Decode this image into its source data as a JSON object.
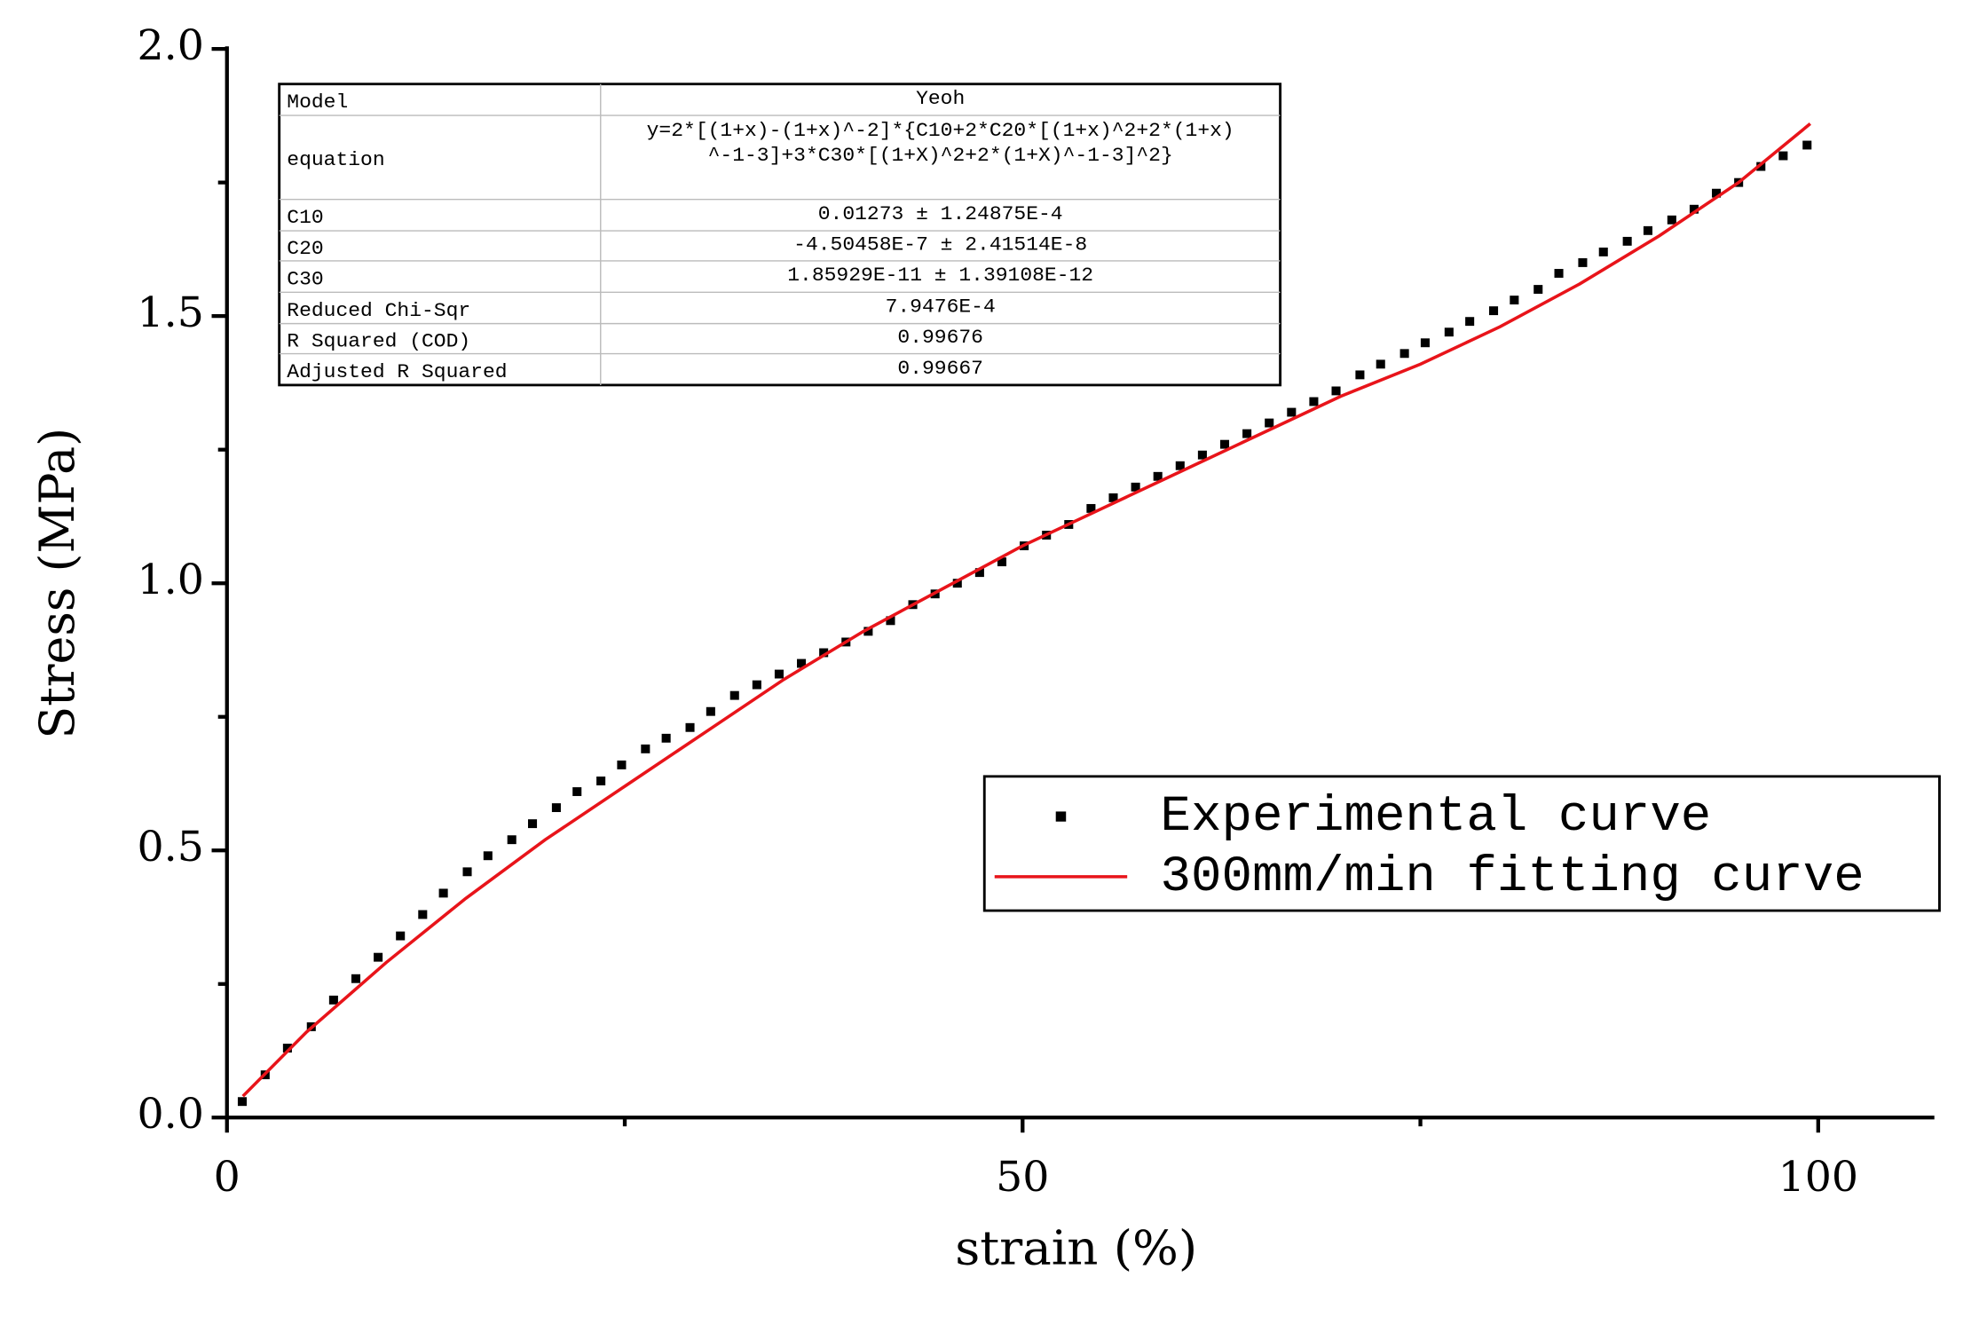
{
  "chart_data": {
    "type": "scatter",
    "x_label": "strain (%)",
    "y_label": "Stress (MPa)",
    "xlim": [
      0,
      107.3
    ],
    "ylim": [
      0,
      2.0
    ],
    "xticks": [
      0,
      50,
      100
    ],
    "yticks": [
      {
        "value": 0,
        "label": "0.0"
      },
      {
        "value": 0.5,
        "label": "0.5"
      },
      {
        "value": 1,
        "label": "1.0"
      },
      {
        "value": 1.5,
        "label": "1.5"
      },
      {
        "value": 2,
        "label": "2.0"
      }
    ],
    "xminor": [
      25,
      75
    ],
    "yminor": [
      0.25,
      0.75,
      1.25,
      1.75
    ],
    "legend": "lower right",
    "series": [
      {
        "name": "Experimental curve",
        "color": "#000000",
        "mode": "markers",
        "x": [
          0.96,
          2.4,
          3.8,
          5.3,
          6.7,
          8.1,
          9.5,
          10.9,
          12.3,
          13.6,
          15.1,
          16.4,
          17.9,
          19.2,
          20.7,
          22.0,
          23.5,
          24.8,
          26.3,
          27.6,
          29.1,
          30.4,
          31.9,
          33.3,
          34.7,
          36.1,
          37.5,
          38.9,
          40.3,
          41.7,
          43.1,
          44.5,
          45.9,
          47.3,
          48.7,
          50.1,
          51.5,
          52.9,
          54.3,
          55.7,
          57.1,
          58.5,
          59.9,
          61.3,
          62.7,
          64.1,
          65.5,
          66.9,
          68.3,
          69.7,
          71.2,
          72.5,
          74.0,
          75.3,
          76.8,
          78.1,
          79.6,
          80.9,
          82.4,
          83.7,
          85.2,
          86.5,
          88.0,
          89.3,
          90.8,
          92.2,
          93.6,
          95.0,
          96.4,
          97.8,
          99.3
        ],
        "values": [
          0.03,
          0.08,
          0.13,
          0.17,
          0.22,
          0.26,
          0.3,
          0.34,
          0.38,
          0.42,
          0.46,
          0.49,
          0.52,
          0.55,
          0.58,
          0.61,
          0.63,
          0.66,
          0.69,
          0.71,
          0.73,
          0.76,
          0.79,
          0.81,
          0.83,
          0.85,
          0.87,
          0.89,
          0.91,
          0.93,
          0.96,
          0.98,
          1.0,
          1.02,
          1.04,
          1.07,
          1.09,
          1.11,
          1.14,
          1.16,
          1.18,
          1.2,
          1.22,
          1.24,
          1.26,
          1.28,
          1.3,
          1.32,
          1.34,
          1.36,
          1.39,
          1.41,
          1.43,
          1.45,
          1.47,
          1.49,
          1.51,
          1.53,
          1.55,
          1.58,
          1.6,
          1.62,
          1.64,
          1.66,
          1.68,
          1.7,
          1.73,
          1.75,
          1.78,
          1.8,
          1.82
        ]
      },
      {
        "name": "300mm/min fitting curve",
        "color": "#e8141a",
        "mode": "line",
        "x": [
          1,
          5,
          10,
          15,
          20,
          25,
          30,
          35,
          40,
          45,
          50,
          55,
          60,
          65,
          70,
          75,
          80,
          85,
          90,
          95,
          99.5
        ],
        "values": [
          0.04,
          0.16,
          0.29,
          0.41,
          0.52,
          0.62,
          0.72,
          0.82,
          0.91,
          0.99,
          1.07,
          1.14,
          1.21,
          1.28,
          1.35,
          1.41,
          1.48,
          1.56,
          1.65,
          1.75,
          1.86
        ]
      }
    ],
    "fit_table": {
      "rows": [
        [
          "Model",
          "Yeoh"
        ],
        [
          "equation",
          [
            "y=2*[(1+x)-(1+x)^-2]*{C10+2*C20*[(1+x)^2+2*(1+x)",
            "^-1-3]+3*C30*[(1+X)^2+2*(1+X)^-1-3]^2}"
          ]
        ],
        [
          "C10",
          "0.01273 ± 1.24875E-4"
        ],
        [
          "C20",
          "-4.50458E-7 ± 2.41514E-8"
        ],
        [
          "C30",
          "1.85929E-11 ± 1.39108E-12"
        ],
        [
          "Reduced Chi-Sqr",
          "7.9476E-4"
        ],
        [
          "R Squared (COD)",
          "0.99676"
        ],
        [
          "Adjusted R Squared",
          "0.99667"
        ]
      ]
    }
  }
}
